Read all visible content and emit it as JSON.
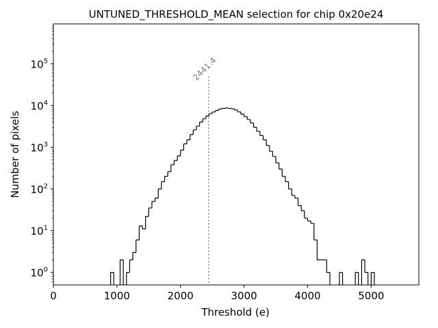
{
  "chart_data": {
    "type": "histogram",
    "title": "UNTUNED_THRESHOLD_MEAN selection for chip 0x20e24",
    "xlabel": "Threshold (e)",
    "ylabel": "Number of pixels",
    "xlim": [
      0,
      5750
    ],
    "ylim": [
      0.5,
      900000
    ],
    "yscale": "log",
    "bin_width": 50,
    "bin_start": 850,
    "x_ticks": [
      0,
      1000,
      2000,
      3000,
      4000,
      5000
    ],
    "x_tick_labels": [
      "0",
      "1000",
      "2000",
      "3000",
      "4000",
      "5000"
    ],
    "y_ticks": [
      1,
      10,
      100,
      1000,
      10000,
      100000
    ],
    "y_tick_labels": [
      {
        "base": "10",
        "exp": "0"
      },
      {
        "base": "10",
        "exp": "1"
      },
      {
        "base": "10",
        "exp": "2"
      },
      {
        "base": "10",
        "exp": "3"
      },
      {
        "base": "10",
        "exp": "4"
      },
      {
        "base": "10",
        "exp": "5"
      }
    ],
    "counts": [
      0,
      1,
      0,
      0,
      2,
      0,
      1,
      2,
      3,
      6,
      13,
      11,
      22,
      35,
      50,
      60,
      100,
      150,
      200,
      260,
      380,
      480,
      620,
      850,
      1200,
      1500,
      2000,
      2600,
      3200,
      4000,
      4800,
      5600,
      6400,
      7000,
      7600,
      8200,
      8500,
      8700,
      8500,
      8300,
      7800,
      7000,
      6200,
      5400,
      4600,
      3800,
      3000,
      2400,
      1900,
      1500,
      1100,
      800,
      600,
      420,
      300,
      200,
      150,
      100,
      70,
      60,
      40,
      30,
      20,
      17,
      15,
      6,
      2,
      2,
      2,
      1,
      0,
      0,
      0,
      1,
      0,
      0,
      0,
      0,
      1,
      0,
      2,
      1,
      0,
      1,
      0
    ],
    "annotation": {
      "label": "2441.4",
      "x": 2441.4,
      "y_top": 50000,
      "color": "#808080"
    },
    "line_color": "#000000"
  }
}
